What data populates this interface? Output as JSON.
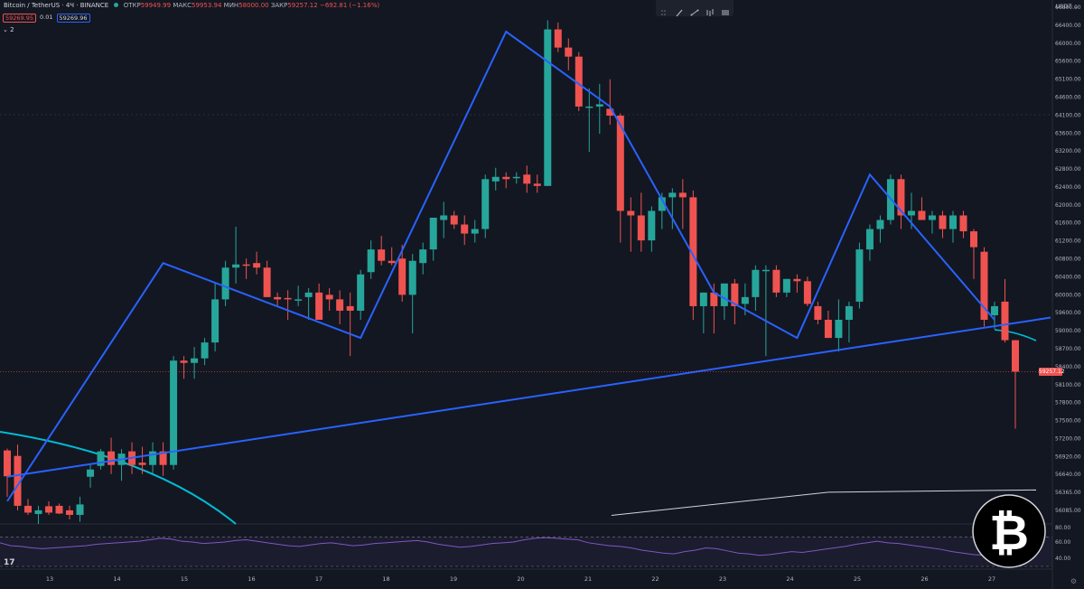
{
  "header": {
    "symbol": "Bitcoin / TetherUS",
    "interval": "4Ч",
    "exchange": "BINANCE",
    "open_label": "ОТКР",
    "open": "59949.99",
    "high_label": "МАКС",
    "high": "59953.94",
    "low_label": "МИН",
    "low": "58000.00",
    "close_label": "ЗАКР",
    "close": "59257.12",
    "change": "−692.81 (−1.16%)",
    "sell_price": "59269.95",
    "spread": "0.01",
    "buy_price": "59269.96",
    "indicators_count": "2",
    "currency": "USDT"
  },
  "colors": {
    "background": "#131722",
    "up": "#26a69a",
    "down": "#ef5350",
    "trendline": "#2962ff",
    "arc": "#00bcd4",
    "rsi": "#7e57c2"
  },
  "price_axis_labels": [
    "66800.00",
    "66400.00",
    "66000.00",
    "65600.00",
    "65100.00",
    "64600.00",
    "64100.00",
    "63600.00",
    "63200.00",
    "62800.00",
    "62400.00",
    "62000.00",
    "61600.00",
    "61200.00",
    "60800.00",
    "60400.00",
    "60000.00",
    "59600.00",
    "59000.00",
    "58700.00",
    "58400.00",
    "58100.00",
    "57800.00",
    "57500.00",
    "57200.00",
    "56920.00",
    "56640.00",
    "56365.00",
    "56085.00"
  ],
  "rsi_axis_labels": [
    "80.00",
    "60.00",
    "40.00"
  ],
  "chart_data": {
    "type": "candlestick",
    "symbol": "Bitcoin / TetherUS",
    "x_tick_labels": [
      "13",
      "14",
      "15",
      "16",
      "17",
      "18",
      "19",
      "20",
      "21",
      "22",
      "23",
      "24",
      "25",
      "26",
      "27"
    ],
    "current_price": 59257.12,
    "candles": [
      {
        "o": 57520,
        "h": 57560,
        "l": 56500,
        "c": 56950
      },
      {
        "o": 57400,
        "h": 57650,
        "l": 56200,
        "c": 56300
      },
      {
        "o": 56300,
        "h": 56450,
        "l": 56100,
        "c": 56150
      },
      {
        "o": 56120,
        "h": 56300,
        "l": 55900,
        "c": 56200
      },
      {
        "o": 56290,
        "h": 56400,
        "l": 56100,
        "c": 56150
      },
      {
        "o": 56300,
        "h": 56350,
        "l": 56120,
        "c": 56130
      },
      {
        "o": 56200,
        "h": 56300,
        "l": 56000,
        "c": 56100
      },
      {
        "o": 56100,
        "h": 56500,
        "l": 55950,
        "c": 56330
      },
      {
        "o": 56940,
        "h": 57200,
        "l": 56700,
        "c": 57100
      },
      {
        "o": 57180,
        "h": 57550,
        "l": 57100,
        "c": 57500
      },
      {
        "o": 57500,
        "h": 57800,
        "l": 57000,
        "c": 57200
      },
      {
        "o": 57200,
        "h": 57550,
        "l": 56850,
        "c": 57450
      },
      {
        "o": 57500,
        "h": 57700,
        "l": 57000,
        "c": 57200
      },
      {
        "o": 57250,
        "h": 57600,
        "l": 57000,
        "c": 57200
      },
      {
        "o": 57200,
        "h": 57700,
        "l": 57000,
        "c": 57500
      },
      {
        "o": 57500,
        "h": 57700,
        "l": 56960,
        "c": 57200
      },
      {
        "o": 57200,
        "h": 59600,
        "l": 57100,
        "c": 59500
      },
      {
        "o": 59500,
        "h": 59600,
        "l": 59100,
        "c": 59450
      },
      {
        "o": 59450,
        "h": 59800,
        "l": 59100,
        "c": 59550
      },
      {
        "o": 59550,
        "h": 60000,
        "l": 59400,
        "c": 59900
      },
      {
        "o": 59900,
        "h": 61200,
        "l": 59700,
        "c": 60850
      },
      {
        "o": 60850,
        "h": 61700,
        "l": 60700,
        "c": 61550
      },
      {
        "o": 61550,
        "h": 62450,
        "l": 61200,
        "c": 61620
      },
      {
        "o": 61620,
        "h": 61750,
        "l": 61300,
        "c": 61600
      },
      {
        "o": 61650,
        "h": 61900,
        "l": 61400,
        "c": 61550
      },
      {
        "o": 61550,
        "h": 61700,
        "l": 60900,
        "c": 60900
      },
      {
        "o": 60900,
        "h": 61000,
        "l": 60700,
        "c": 60850
      },
      {
        "o": 60880,
        "h": 61050,
        "l": 60400,
        "c": 60850
      },
      {
        "o": 60850,
        "h": 61150,
        "l": 60700,
        "c": 60850
      },
      {
        "o": 60900,
        "h": 61100,
        "l": 60400,
        "c": 61000
      },
      {
        "o": 61000,
        "h": 61200,
        "l": 60400,
        "c": 60400
      },
      {
        "o": 60950,
        "h": 61100,
        "l": 60600,
        "c": 60850
      },
      {
        "o": 60850,
        "h": 61050,
        "l": 60300,
        "c": 60600
      },
      {
        "o": 60700,
        "h": 61000,
        "l": 59600,
        "c": 60600
      },
      {
        "o": 60600,
        "h": 61500,
        "l": 60400,
        "c": 61400
      },
      {
        "o": 61450,
        "h": 62150,
        "l": 61300,
        "c": 61950
      },
      {
        "o": 61950,
        "h": 62250,
        "l": 61600,
        "c": 61700
      },
      {
        "o": 61700,
        "h": 62000,
        "l": 61600,
        "c": 61650
      },
      {
        "o": 61750,
        "h": 62050,
        "l": 60800,
        "c": 60950
      },
      {
        "o": 60950,
        "h": 61850,
        "l": 60100,
        "c": 61700
      },
      {
        "o": 61650,
        "h": 62100,
        "l": 61400,
        "c": 61950
      },
      {
        "o": 61950,
        "h": 62650,
        "l": 61700,
        "c": 62650
      },
      {
        "o": 62600,
        "h": 63000,
        "l": 62200,
        "c": 62700
      },
      {
        "o": 62700,
        "h": 62800,
        "l": 62400,
        "c": 62500
      },
      {
        "o": 62500,
        "h": 62700,
        "l": 62050,
        "c": 62300
      },
      {
        "o": 62300,
        "h": 62600,
        "l": 62100,
        "c": 62400
      },
      {
        "o": 62400,
        "h": 63600,
        "l": 62200,
        "c": 63500
      },
      {
        "o": 63450,
        "h": 63750,
        "l": 63250,
        "c": 63550
      },
      {
        "o": 63550,
        "h": 63650,
        "l": 63300,
        "c": 63500
      },
      {
        "o": 63550,
        "h": 63650,
        "l": 63400,
        "c": 63550
      },
      {
        "o": 63600,
        "h": 63800,
        "l": 63200,
        "c": 63400
      },
      {
        "o": 63400,
        "h": 63600,
        "l": 63200,
        "c": 63350
      },
      {
        "o": 63350,
        "h": 67000,
        "l": 63350,
        "c": 66800
      },
      {
        "o": 66800,
        "h": 66950,
        "l": 66300,
        "c": 66400
      },
      {
        "o": 66400,
        "h": 66600,
        "l": 65900,
        "c": 66200
      },
      {
        "o": 66200,
        "h": 66300,
        "l": 65000,
        "c": 65100
      },
      {
        "o": 65100,
        "h": 65500,
        "l": 64100,
        "c": 65100
      },
      {
        "o": 65100,
        "h": 65600,
        "l": 64500,
        "c": 65150
      },
      {
        "o": 65050,
        "h": 65700,
        "l": 64700,
        "c": 64900
      },
      {
        "o": 64900,
        "h": 64950,
        "l": 62100,
        "c": 62800
      },
      {
        "o": 62800,
        "h": 63100,
        "l": 61900,
        "c": 62700
      },
      {
        "o": 62700,
        "h": 63200,
        "l": 61900,
        "c": 62150
      },
      {
        "o": 62150,
        "h": 62900,
        "l": 61900,
        "c": 62800
      },
      {
        "o": 62800,
        "h": 63200,
        "l": 62400,
        "c": 63100
      },
      {
        "o": 63100,
        "h": 63300,
        "l": 62400,
        "c": 63200
      },
      {
        "o": 63200,
        "h": 63500,
        "l": 62400,
        "c": 63100
      },
      {
        "o": 63100,
        "h": 63250,
        "l": 60400,
        "c": 60700
      },
      {
        "o": 60700,
        "h": 61000,
        "l": 60100,
        "c": 61000
      },
      {
        "o": 61000,
        "h": 61200,
        "l": 60100,
        "c": 60700
      },
      {
        "o": 60700,
        "h": 61200,
        "l": 60400,
        "c": 61200
      },
      {
        "o": 61200,
        "h": 61300,
        "l": 60300,
        "c": 60700
      },
      {
        "o": 60750,
        "h": 61200,
        "l": 60500,
        "c": 60900
      },
      {
        "o": 60900,
        "h": 61600,
        "l": 60600,
        "c": 61500
      },
      {
        "o": 61500,
        "h": 61600,
        "l": 59600,
        "c": 61500
      },
      {
        "o": 61500,
        "h": 61600,
        "l": 60900,
        "c": 61000
      },
      {
        "o": 61000,
        "h": 61300,
        "l": 60900,
        "c": 61300
      },
      {
        "o": 61300,
        "h": 61400,
        "l": 61000,
        "c": 61250
      },
      {
        "o": 61250,
        "h": 61350,
        "l": 60700,
        "c": 60750
      },
      {
        "o": 60700,
        "h": 60800,
        "l": 60300,
        "c": 60400
      },
      {
        "o": 60400,
        "h": 60600,
        "l": 60000,
        "c": 60000
      },
      {
        "o": 60000,
        "h": 60850,
        "l": 59700,
        "c": 60400
      },
      {
        "o": 60400,
        "h": 60800,
        "l": 59900,
        "c": 60700
      },
      {
        "o": 60800,
        "h": 62100,
        "l": 60650,
        "c": 61950
      },
      {
        "o": 61950,
        "h": 62500,
        "l": 61700,
        "c": 62400
      },
      {
        "o": 62400,
        "h": 62700,
        "l": 62100,
        "c": 62600
      },
      {
        "o": 62600,
        "h": 63600,
        "l": 62500,
        "c": 63500
      },
      {
        "o": 63500,
        "h": 63600,
        "l": 62400,
        "c": 62700
      },
      {
        "o": 62700,
        "h": 63200,
        "l": 62400,
        "c": 62800
      },
      {
        "o": 62800,
        "h": 63100,
        "l": 62600,
        "c": 62600
      },
      {
        "o": 62600,
        "h": 62800,
        "l": 62300,
        "c": 62700
      },
      {
        "o": 62700,
        "h": 62800,
        "l": 62200,
        "c": 62400
      },
      {
        "o": 62400,
        "h": 62800,
        "l": 62100,
        "c": 62700
      },
      {
        "o": 62700,
        "h": 62800,
        "l": 62200,
        "c": 62350
      },
      {
        "o": 62350,
        "h": 62400,
        "l": 61300,
        "c": 62000
      },
      {
        "o": 61900,
        "h": 62000,
        "l": 60250,
        "c": 60400
      },
      {
        "o": 60500,
        "h": 60800,
        "l": 60200,
        "c": 60700
      },
      {
        "o": 60800,
        "h": 61300,
        "l": 59900,
        "c": 59950
      },
      {
        "o": 59950,
        "h": 59954,
        "l": 58000,
        "c": 59257
      }
    ],
    "trendlines": [
      {
        "points": [
          [
            0,
            56940
          ],
          [
            99,
            60400
          ]
        ],
        "color": "#2962ff"
      },
      {
        "points": [
          [
            0,
            56400
          ],
          [
            15,
            61650
          ],
          [
            34,
            60000
          ],
          [
            48,
            66750
          ],
          [
            58,
            65100
          ],
          [
            68,
            61000
          ],
          [
            76,
            60000
          ],
          [
            83,
            63600
          ],
          [
            95,
            60400
          ]
        ],
        "color": "#2962ff"
      },
      {
        "points": [
          [
            79,
            56600
          ],
          [
            99,
            56650
          ]
        ],
        "color": "#d1d4dc"
      }
    ],
    "arc": {
      "center_x": 1.0,
      "center_price": 55900,
      "color": "#00bcd4"
    },
    "rsi": {
      "levels": [
        70,
        30
      ],
      "values": [
        62,
        58,
        57,
        55,
        54,
        55,
        56,
        57,
        58,
        60,
        61,
        62,
        63,
        64,
        66,
        68,
        67,
        64,
        63,
        61,
        62,
        63,
        65,
        66,
        64,
        62,
        60,
        58,
        57,
        59,
        61,
        62,
        60,
        58,
        59,
        61,
        62,
        63,
        64,
        65,
        63,
        60,
        58,
        56,
        57,
        59,
        61,
        62,
        63,
        66,
        68,
        69,
        68,
        67,
        66,
        62,
        60,
        58,
        57,
        55,
        52,
        50,
        48,
        47,
        50,
        52,
        55,
        54,
        51,
        48,
        47,
        45,
        46,
        48,
        50,
        49,
        51,
        53,
        55,
        57,
        60,
        62,
        64,
        62,
        61,
        59,
        57,
        55,
        53,
        50,
        48,
        46,
        45,
        43,
        42,
        40
      ]
    }
  }
}
